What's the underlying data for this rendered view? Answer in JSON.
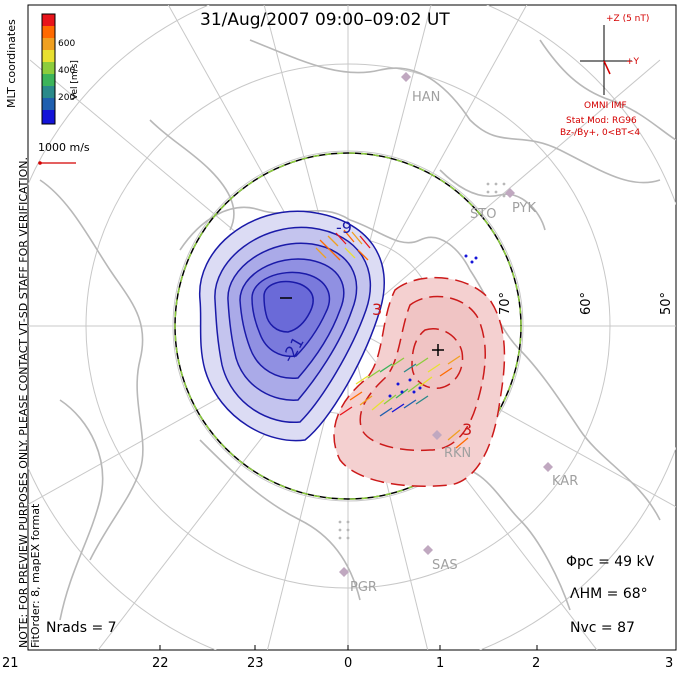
{
  "title": "31/Aug/2007 09:00–09:02 UT",
  "colorbar": {
    "label": "Vel [m/s]",
    "ticks": [
      "600",
      "400",
      "200"
    ],
    "colors": [
      "#e8141b",
      "#ff6a00",
      "#f0a020",
      "#e8e030",
      "#8ccd3c",
      "#3cb45a",
      "#2a8a8a",
      "#1f5faf",
      "#1414d8"
    ]
  },
  "vector_scale": {
    "label": "1000 m/s"
  },
  "side_note": {
    "line1": "MLT coordinates",
    "line2": "NOTE: FOR PREVIEW PURPOSES ONLY. PLEASE CONTACT VT-SD STAFF FOR VERIFICATION.",
    "line3": "FitOrder: 8, mapEX format"
  },
  "imf": {
    "z_label": "+Z (5 nT)",
    "y_label": "+Y",
    "source": "OMNI IMF",
    "model": "Stat Mod: RG96",
    "condition": "Bz-/By+, 0<BT<4",
    "color": "#d40000"
  },
  "stations": [
    "HAN",
    "STO",
    "PYK",
    "RKN",
    "KAR",
    "SAS",
    "PGR"
  ],
  "latitude_labels": [
    "70°",
    "60°",
    "50°"
  ],
  "mlt_labels": [
    "21",
    "22",
    "23",
    "0",
    "1",
    "2",
    "3"
  ],
  "contour_labels": [
    "-9",
    "-21",
    "3",
    "+"
  ],
  "stats": {
    "phi_pc": {
      "label": "Φpc",
      "value": "= 49 kV"
    },
    "lambda_hm": {
      "label": "ΛHM",
      "value": "= 68°"
    },
    "n_vc": {
      "label": "Nvc",
      "value": "= 87"
    },
    "n_rads": {
      "label": "Nrads",
      "value": "= 7"
    }
  },
  "colors": {
    "negative_cell": "#1a1aa8",
    "positive_cell": "#cc1a1a",
    "grid": "#c8c8c8",
    "coast": "#b8b8b8",
    "hmb": "#8ccd3c"
  }
}
